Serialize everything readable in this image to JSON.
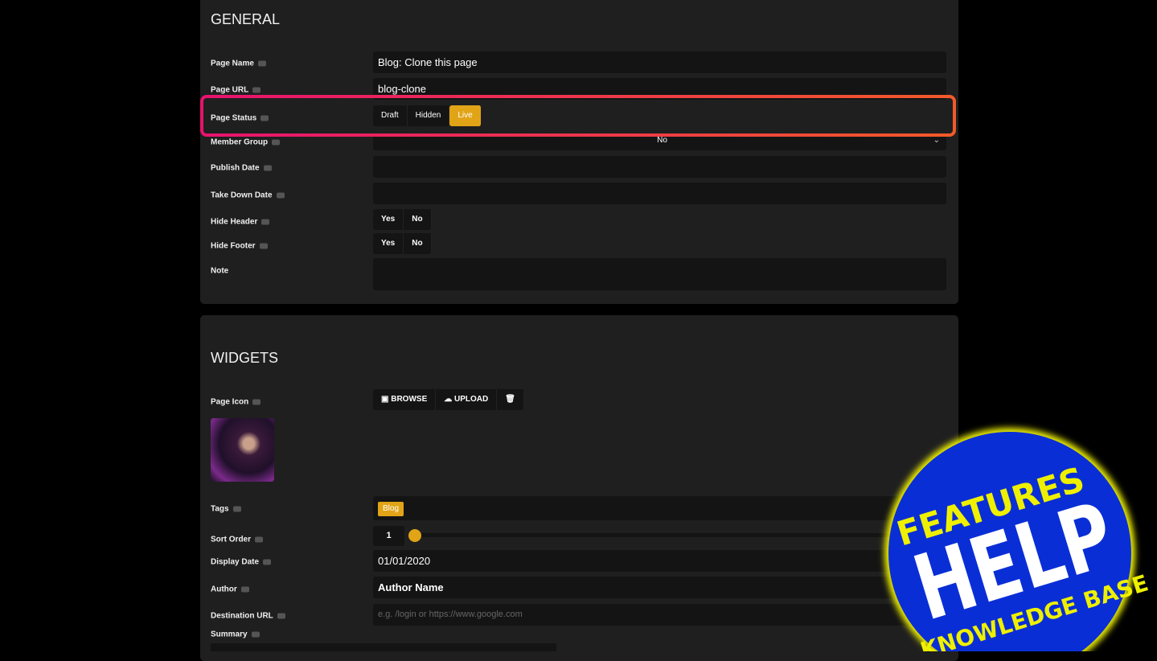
{
  "general": {
    "title": "GENERAL",
    "page_name": {
      "label": "Page Name",
      "value": "Blog: Clone this page"
    },
    "page_url": {
      "label": "Page URL",
      "value": "blog-clone"
    },
    "page_status": {
      "label": "Page Status",
      "options": [
        "Draft",
        "Hidden",
        "Live"
      ],
      "selected": "Live"
    },
    "member_group": {
      "label": "Member Group",
      "value": "No"
    },
    "publish_date": {
      "label": "Publish Date"
    },
    "take_down_date": {
      "label": "Take Down Date"
    },
    "hide_header": {
      "label": "Hide Header",
      "options": [
        "Yes",
        "No"
      ]
    },
    "hide_footer": {
      "label": "Hide Footer",
      "options": [
        "Yes",
        "No"
      ]
    },
    "note": {
      "label": "Note"
    }
  },
  "widgets": {
    "title": "WIDGETS",
    "page_icon": {
      "label": "Page Icon",
      "buttons": [
        "BROWSE",
        "UPLOAD"
      ]
    },
    "tags": {
      "label": "Tags",
      "values": [
        "Blog"
      ]
    },
    "sort_order": {
      "label": "Sort Order",
      "value": "1"
    },
    "display_date": {
      "label": "Display Date",
      "value": "01/01/2020"
    },
    "author": {
      "label": "Author",
      "value": "Author Name"
    },
    "destination_url": {
      "label": "Destination URL",
      "placeholder": "e.g. /login or https://www.google.com"
    },
    "summary": {
      "label": "Summary"
    }
  },
  "badge": {
    "line1": "FEATURES",
    "line2": "HELP",
    "line3": "KNOWLEDGE BASE"
  }
}
